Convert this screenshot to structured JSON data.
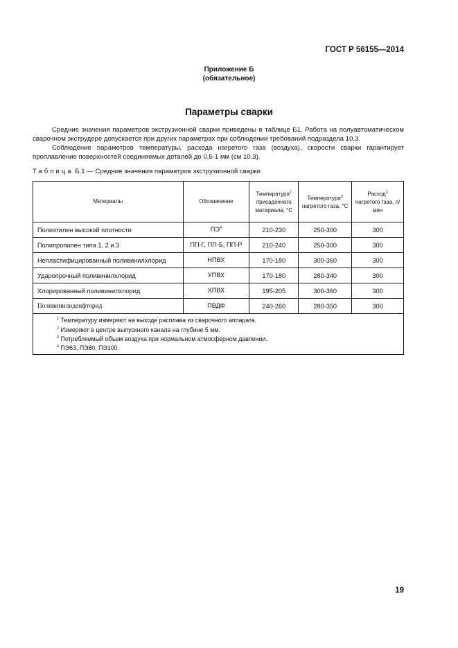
{
  "header": {
    "standard": "ГОСТ Р 56155—2014"
  },
  "appendix": {
    "title": "Приложение Б",
    "status": "(обязательное)"
  },
  "section_title": "Параметры сварки",
  "paragraphs": [
    "Средние значения параметров экструзионной сварки приведены в таблице Б1. Работа на полуавтоматическом сварочном экструдере допускается при других параметрах при соблюдении требований подраздела 10.3.",
    "Соблюдение параметров температуры, расхода нагретого газа (воздуха), скорости сварки гарантирует проплавление поверхностей соединяемых деталей до 0,5-1 мм (см 10.3)."
  ],
  "table": {
    "caption_word": "Таблица",
    "caption_rest": "Б.1 — Средние значения параметров экструзионной сварки",
    "headers": [
      {
        "text": "Материалы",
        "sup": ""
      },
      {
        "text": "Обозначение",
        "sup": ""
      },
      {
        "text": "Температура",
        "sup": "1",
        "rest": "присадочного материала, °С"
      },
      {
        "text": "Температура",
        "sup": "2",
        "rest": "нагретого газа, °С"
      },
      {
        "text": "Расход",
        "sup": "3",
        "rest": "нагретого газа, л/мин"
      }
    ],
    "rows": [
      {
        "material": "Полиэтилен высокой плотности",
        "code": "ПЭ",
        "code_sup": "4",
        "t_filler": "210-230",
        "t_gas": "250-300",
        "flow": "300"
      },
      {
        "material": "Полипропилен типа 1, 2 и 3",
        "code": "ПП-Г, ПП-Б, ПП-Р",
        "code_sup": "",
        "t_filler": "210-240",
        "t_gas": "250-300",
        "flow": "300"
      },
      {
        "material": "Непластифицированный поливинилхлорид",
        "code": "НПВХ",
        "code_sup": "",
        "t_filler": "170-180",
        "t_gas": "300-360",
        "flow": "300"
      },
      {
        "material": "Ударопрочный поливинилхлорид",
        "code": "УПВХ",
        "code_sup": "",
        "t_filler": "170-180",
        "t_gas": "280-340",
        "flow": "300"
      },
      {
        "material": "Хлорированный поливинилхлорид",
        "code": "ХПВХ",
        "code_sup": "",
        "t_filler": "195-205",
        "t_gas": "300-360",
        "flow": "300"
      },
      {
        "material": "Поливинилиденфторид",
        "code": "ПВДФ",
        "code_sup": "",
        "t_filler": "240-260",
        "t_gas": "280-350",
        "flow": "300"
      }
    ],
    "footnotes": [
      {
        "n": "1",
        "text": "Температуру измеряют на выходе расплава из сварочного аппарата."
      },
      {
        "n": "2",
        "text": "Измеряют в центре выпускного канала на глубине 5 мм."
      },
      {
        "n": "3",
        "text": "Потребляемый объем воздуха при нормальном атмосферном давлении."
      },
      {
        "n": "4",
        "text": "ПЭ63, ПЭ80, ПЭ100."
      }
    ]
  },
  "page_number": "19"
}
